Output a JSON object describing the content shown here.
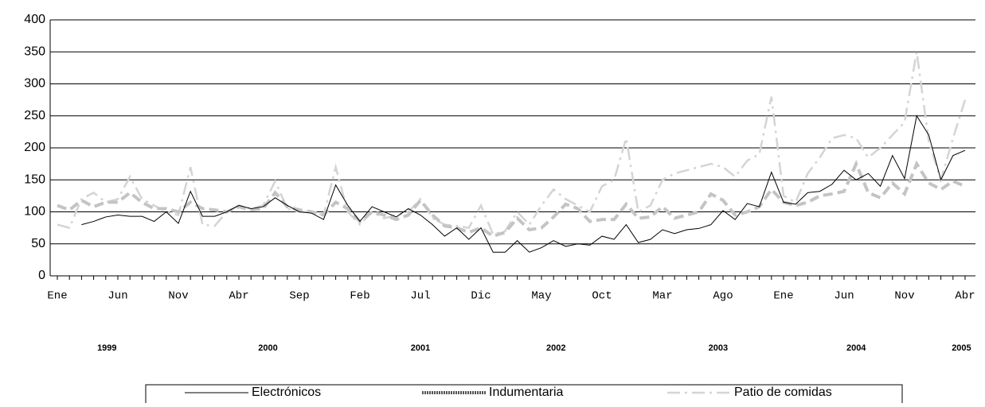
{
  "chart_data": {
    "type": "line",
    "categories": [
      "Ene",
      null,
      null,
      null,
      null,
      "Jun",
      null,
      null,
      null,
      null,
      "Nov",
      null,
      null,
      null,
      null,
      "Abr",
      null,
      null,
      null,
      null,
      "Sep",
      null,
      null,
      null,
      null,
      "Feb",
      null,
      null,
      null,
      null,
      "Jul",
      null,
      null,
      null,
      null,
      "Dic",
      null,
      null,
      null,
      null,
      "May",
      null,
      null,
      null,
      null,
      "Oct",
      null,
      null,
      null,
      null,
      "Mar",
      null,
      null,
      null,
      null,
      "Ago",
      null,
      null,
      null,
      null,
      "Ene",
      null,
      null,
      null,
      null,
      "Jun",
      null,
      null,
      null,
      null,
      "Nov",
      null,
      null,
      null,
      null,
      "Abr"
    ],
    "year_labels": [
      "1999",
      "2000",
      "2001",
      "2002",
      "2003",
      "2004",
      "2005"
    ],
    "series": [
      {
        "name": "Electrónicos",
        "color": "#000000",
        "values": [
          null,
          null,
          80,
          85,
          92,
          95,
          93,
          93,
          85,
          100,
          82,
          132,
          93,
          93,
          100,
          110,
          105,
          108,
          122,
          110,
          100,
          98,
          88,
          142,
          110,
          85,
          108,
          100,
          92,
          105,
          95,
          80,
          62,
          75,
          57,
          75,
          37,
          37,
          55,
          37,
          44,
          55,
          46,
          50,
          48,
          62,
          57,
          80,
          52,
          57,
          72,
          66,
          72,
          74,
          80,
          102,
          88,
          113,
          108,
          162,
          115,
          112,
          130,
          132,
          143,
          165,
          150,
          160,
          140,
          188,
          152,
          250,
          220,
          150,
          188,
          196
        ]
      },
      {
        "name": "Indumentaria",
        "color": "#c4c4c4",
        "values": [
          110,
          103,
          118,
          108,
          115,
          115,
          130,
          115,
          105,
          105,
          100,
          115,
          105,
          103,
          100,
          108,
          103,
          105,
          130,
          108,
          103,
          100,
          95,
          115,
          105,
          85,
          100,
          95,
          88,
          95,
          118,
          95,
          78,
          75,
          68,
          75,
          62,
          68,
          90,
          72,
          75,
          92,
          112,
          105,
          85,
          88,
          88,
          112,
          90,
          92,
          108,
          90,
          95,
          100,
          128,
          118,
          95,
          100,
          108,
          135,
          115,
          110,
          115,
          125,
          128,
          132,
          175,
          130,
          122,
          145,
          128,
          175,
          145,
          135,
          148,
          140
        ]
      },
      {
        "name": "Patio de comidas",
        "color": "#d4d4d4",
        "values": [
          80,
          75,
          120,
          130,
          115,
          120,
          155,
          120,
          110,
          100,
          95,
          170,
          80,
          78,
          100,
          110,
          105,
          110,
          148,
          105,
          100,
          100,
          95,
          170,
          100,
          80,
          100,
          90,
          95,
          100,
          120,
          90,
          80,
          78,
          75,
          110,
          65,
          70,
          100,
          80,
          110,
          135,
          120,
          110,
          100,
          140,
          150,
          215,
          100,
          110,
          150,
          160,
          165,
          170,
          175,
          170,
          155,
          180,
          190,
          280,
          125,
          115,
          160,
          185,
          215,
          220,
          215,
          185,
          200,
          220,
          240,
          350,
          210,
          150,
          215,
          275
        ]
      }
    ],
    "ylim": [
      0,
      400
    ],
    "yticks": [
      0,
      50,
      100,
      150,
      200,
      250,
      300,
      350,
      400
    ],
    "grid": true
  }
}
